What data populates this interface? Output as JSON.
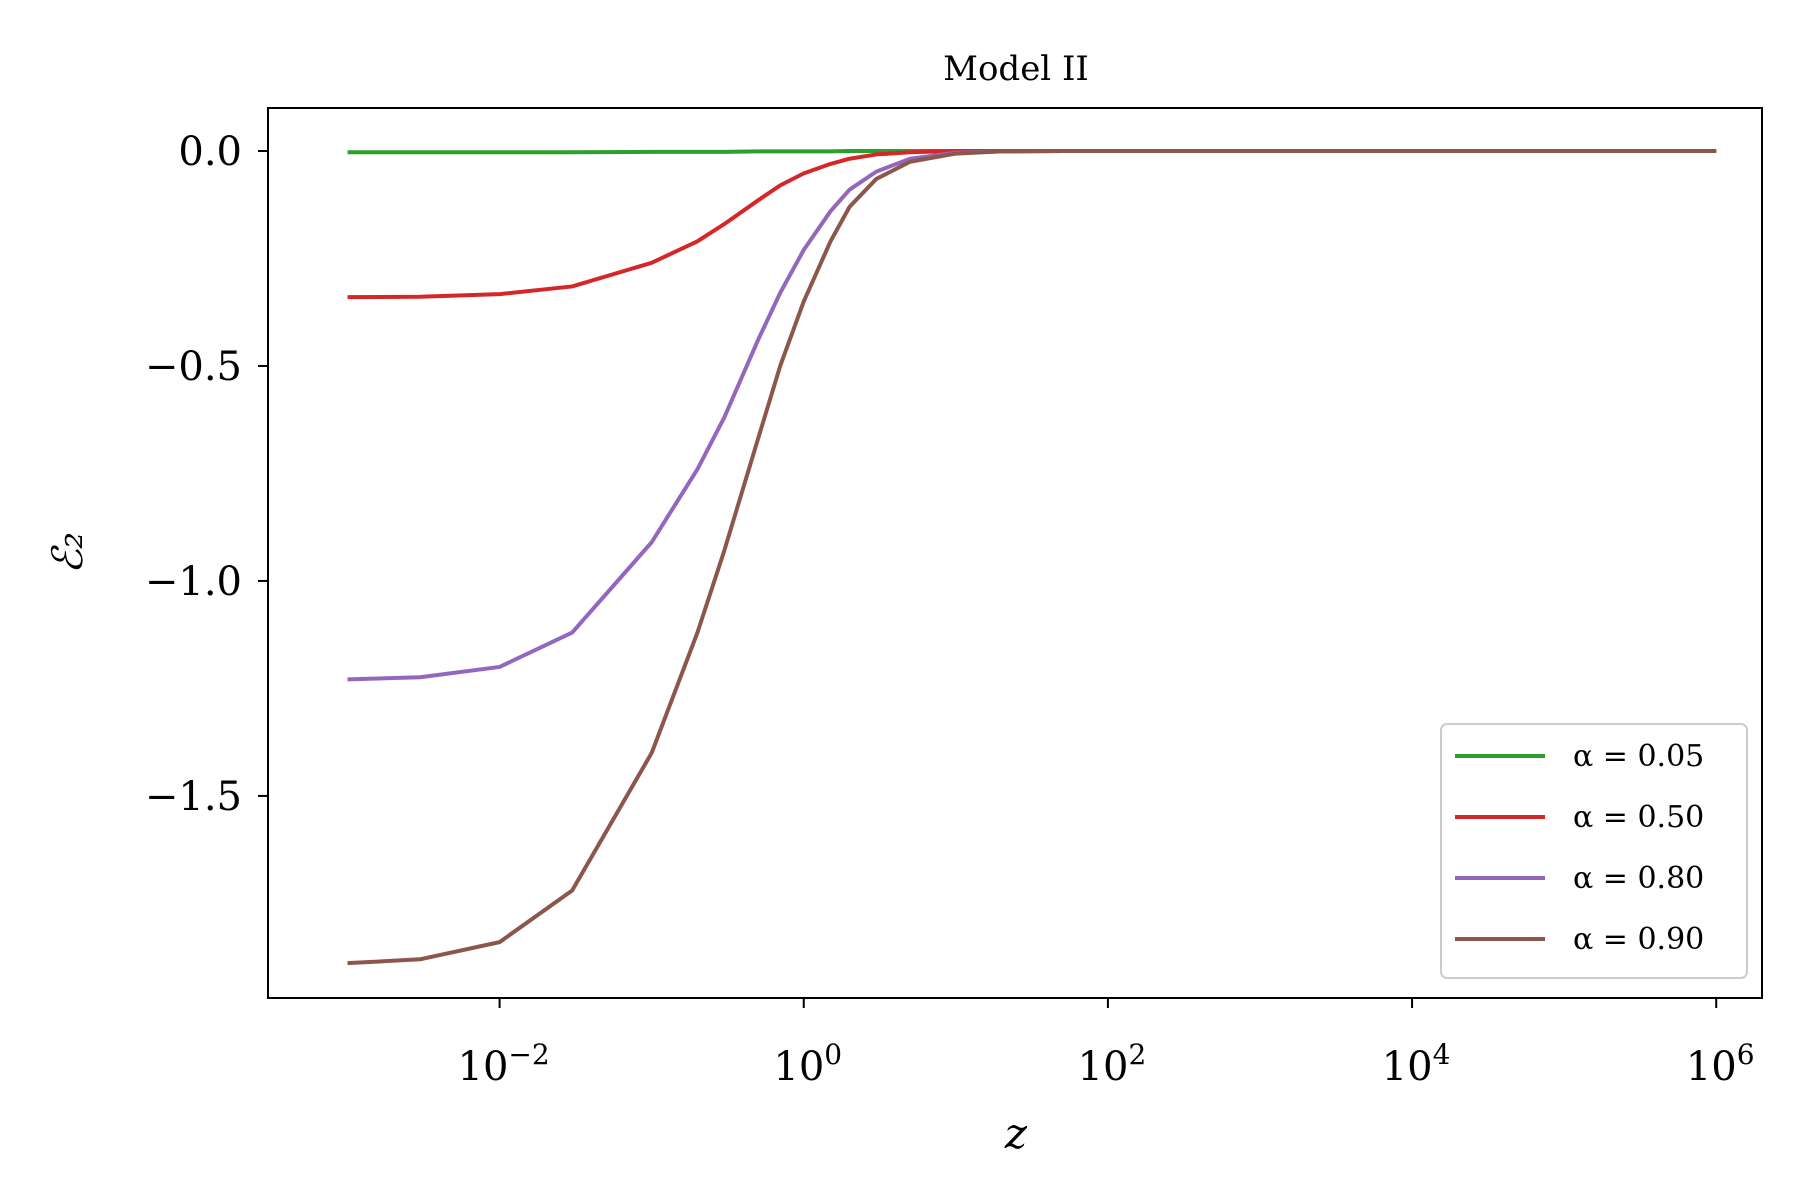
{
  "chart_data": {
    "type": "line",
    "title": "Model II",
    "xlabel": "z",
    "ylabel": "ℰ₂",
    "xscale": "log",
    "xlim": [
      0.0003,
      2000000
    ],
    "ylim": [
      -1.97,
      0.1
    ],
    "xticks": [
      {
        "value": 0.01,
        "base": "10",
        "exp": "−2"
      },
      {
        "value": 1,
        "base": "10",
        "exp": "0"
      },
      {
        "value": 100,
        "base": "10",
        "exp": "2"
      },
      {
        "value": 10000,
        "base": "10",
        "exp": "4"
      },
      {
        "value": 1000000,
        "base": "10",
        "exp": "6"
      }
    ],
    "yticks": [
      {
        "value": 0.0,
        "label": "0.0"
      },
      {
        "value": -0.5,
        "label": "−0.5"
      },
      {
        "value": -1.0,
        "label": "−1.0"
      },
      {
        "value": -1.5,
        "label": "−1.5"
      }
    ],
    "grid": false,
    "legend_position": "lower-right",
    "x": [
      0.001,
      0.003,
      0.01,
      0.03,
      0.1,
      0.2,
      0.3,
      0.5,
      0.7,
      1,
      1.5,
      2,
      3,
      5,
      10,
      20,
      50,
      100,
      1000,
      10000,
      100000,
      1000000
    ],
    "series": [
      {
        "name": "α = 0.05",
        "color": "#2ca02c",
        "values": [
          -0.003,
          -0.003,
          -0.003,
          -0.003,
          -0.002,
          -0.002,
          -0.002,
          -0.001,
          -0.001,
          -0.001,
          -0.001,
          0,
          0,
          0,
          0,
          0,
          0,
          0,
          0,
          0,
          0,
          0
        ]
      },
      {
        "name": "α = 0.50",
        "color": "#d62728",
        "values": [
          -0.34,
          -0.339,
          -0.333,
          -0.315,
          -0.26,
          -0.21,
          -0.17,
          -0.115,
          -0.08,
          -0.052,
          -0.03,
          -0.018,
          -0.008,
          -0.003,
          0,
          0,
          0,
          0,
          0,
          0,
          0,
          0
        ]
      },
      {
        "name": "α = 0.80",
        "color": "#9467bd",
        "values": [
          -1.229,
          -1.224,
          -1.2,
          -1.12,
          -0.91,
          -0.74,
          -0.62,
          -0.44,
          -0.33,
          -0.23,
          -0.14,
          -0.09,
          -0.048,
          -0.018,
          -0.004,
          -0.001,
          0,
          0,
          0,
          0,
          0,
          0
        ]
      },
      {
        "name": "α = 0.90",
        "color": "#8c564b",
        "values": [
          -1.889,
          -1.88,
          -1.84,
          -1.72,
          -1.4,
          -1.12,
          -0.93,
          -0.67,
          -0.5,
          -0.35,
          -0.21,
          -0.13,
          -0.065,
          -0.025,
          -0.006,
          -0.001,
          0,
          0,
          0,
          0,
          0,
          0
        ]
      }
    ]
  }
}
